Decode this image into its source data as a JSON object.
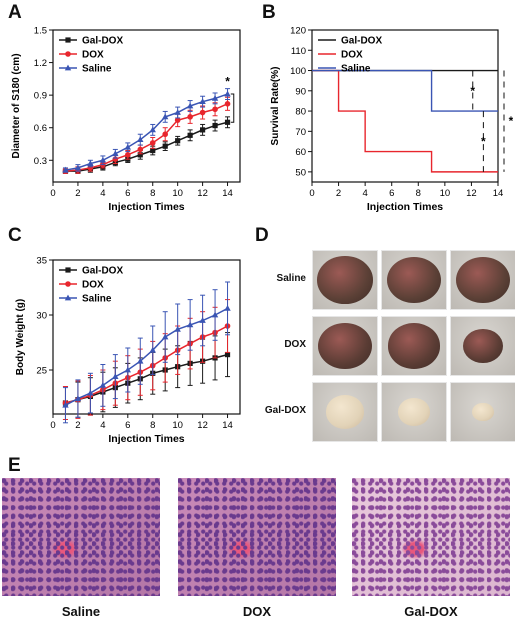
{
  "panels": {
    "a": {
      "letter": "A"
    },
    "b": {
      "letter": "B"
    },
    "c": {
      "letter": "C"
    },
    "d": {
      "letter": "D"
    },
    "e": {
      "letter": "E"
    }
  },
  "colors": {
    "gal_dox": "#1a1a1a",
    "dox": "#e8262d",
    "saline": "#3a55b4"
  },
  "chart_data": [
    {
      "id": "A",
      "type": "line",
      "xlabel": "Injection Times",
      "ylabel": "Diameter of S180 (cm)",
      "xlim": [
        0,
        15
      ],
      "ylim": [
        0.1,
        1.5
      ],
      "xticks": [
        "0",
        "2",
        "4",
        "6",
        "8",
        "10",
        "12",
        "14"
      ],
      "yticks": [
        "0.3",
        "0.6",
        "0.9",
        "1.2",
        "1.5"
      ],
      "legend": "top-left",
      "annotation": "*",
      "x": [
        1,
        2,
        3,
        4,
        5,
        6,
        7,
        8,
        9,
        10,
        11,
        12,
        13,
        14
      ],
      "series": [
        {
          "name": "Gal-DOX",
          "color": "#1a1a1a",
          "marker": "square",
          "values": [
            0.2,
            0.2,
            0.22,
            0.24,
            0.28,
            0.31,
            0.35,
            0.39,
            0.43,
            0.48,
            0.53,
            0.58,
            0.62,
            0.65
          ],
          "errors": [
            0.02,
            0.02,
            0.03,
            0.03,
            0.03,
            0.03,
            0.04,
            0.04,
            0.04,
            0.04,
            0.05,
            0.05,
            0.05,
            0.05
          ]
        },
        {
          "name": "DOX",
          "color": "#e8262d",
          "marker": "circle",
          "values": [
            0.2,
            0.21,
            0.23,
            0.26,
            0.31,
            0.35,
            0.4,
            0.46,
            0.54,
            0.67,
            0.7,
            0.74,
            0.77,
            0.82
          ],
          "errors": [
            0.02,
            0.03,
            0.03,
            0.03,
            0.04,
            0.04,
            0.04,
            0.05,
            0.06,
            0.06,
            0.06,
            0.06,
            0.06,
            0.06
          ]
        },
        {
          "name": "Saline",
          "color": "#3a55b4",
          "marker": "triangle",
          "values": [
            0.21,
            0.23,
            0.27,
            0.3,
            0.36,
            0.42,
            0.49,
            0.58,
            0.7,
            0.74,
            0.8,
            0.84,
            0.87,
            0.91
          ],
          "errors": [
            0.02,
            0.03,
            0.03,
            0.04,
            0.04,
            0.04,
            0.05,
            0.05,
            0.05,
            0.05,
            0.05,
            0.05,
            0.05,
            0.05
          ]
        }
      ]
    },
    {
      "id": "B",
      "type": "line",
      "step": true,
      "xlabel": "Injection Times",
      "ylabel": "Survival Rate(%)",
      "xlim": [
        0,
        14
      ],
      "ylim": [
        45,
        120
      ],
      "xticks": [
        "0",
        "2",
        "4",
        "6",
        "8",
        "10",
        "12",
        "14"
      ],
      "yticks": [
        "50",
        "60",
        "70",
        "80",
        "90",
        "100",
        "110",
        "120"
      ],
      "legend": "top-left",
      "annotations": [
        "*",
        "*",
        "*"
      ],
      "series": [
        {
          "name": "Gal-DOX",
          "color": "#1a1a1a",
          "x": [
            0,
            14
          ],
          "values": [
            100,
            100
          ]
        },
        {
          "name": "DOX",
          "color": "#e8262d",
          "x": [
            0,
            2,
            4,
            9,
            14
          ],
          "values": [
            100,
            80,
            60,
            50,
            50
          ]
        },
        {
          "name": "Saline",
          "color": "#3a55b4",
          "x": [
            0,
            9,
            14
          ],
          "values": [
            100,
            80,
            80
          ]
        }
      ]
    },
    {
      "id": "C",
      "type": "line",
      "xlabel": "Injection Times",
      "ylabel": "Body Weight (g)",
      "xlim": [
        0,
        15
      ],
      "ylim": [
        21,
        35
      ],
      "xticks": [
        "0",
        "2",
        "4",
        "6",
        "8",
        "10",
        "12",
        "14"
      ],
      "yticks": [
        "25",
        "30",
        "35"
      ],
      "legend": "top-left",
      "x": [
        1,
        2,
        3,
        4,
        5,
        6,
        7,
        8,
        9,
        10,
        11,
        12,
        13,
        14
      ],
      "series": [
        {
          "name": "Gal-DOX",
          "color": "#1a1a1a",
          "marker": "square",
          "values": [
            22.0,
            22.3,
            22.6,
            23.0,
            23.4,
            23.8,
            24.2,
            24.7,
            25.0,
            25.3,
            25.6,
            25.8,
            26.1,
            26.4
          ],
          "errors": [
            1.5,
            1.6,
            1.7,
            1.8,
            1.8,
            1.8,
            1.9,
            1.9,
            1.9,
            1.9,
            2.0,
            2.0,
            2.0,
            2.0
          ]
        },
        {
          "name": "DOX",
          "color": "#e8262d",
          "marker": "circle",
          "values": [
            22.0,
            22.3,
            22.7,
            23.2,
            23.8,
            24.3,
            24.8,
            25.4,
            26.1,
            26.8,
            27.4,
            28.0,
            28.4,
            29.0
          ],
          "errors": [
            1.5,
            1.7,
            1.8,
            1.8,
            2.0,
            2.0,
            2.1,
            2.2,
            2.2,
            2.2,
            2.3,
            2.3,
            2.3,
            2.4
          ]
        },
        {
          "name": "Saline",
          "color": "#3a55b4",
          "marker": "triangle",
          "values": [
            21.8,
            22.4,
            22.9,
            23.6,
            24.4,
            25.0,
            25.8,
            26.8,
            28.0,
            28.7,
            29.1,
            29.5,
            30.0,
            30.6
          ],
          "errors": [
            1.6,
            1.7,
            1.8,
            1.9,
            2.0,
            2.0,
            2.1,
            2.2,
            2.3,
            2.3,
            2.3,
            2.3,
            2.3,
            2.4
          ]
        }
      ]
    }
  ],
  "tumor_photos": {
    "rows": [
      {
        "label": "Saline",
        "tone": "#5b4036",
        "sizes": [
          0.86,
          0.84,
          0.84
        ]
      },
      {
        "label": "DOX",
        "tone": "#5a3c34",
        "sizes": [
          0.84,
          0.82,
          0.62
        ]
      },
      {
        "label": "Gal-DOX",
        "tone": "#e2d3b8",
        "sizes": [
          0.6,
          0.5,
          0.34
        ]
      }
    ]
  },
  "histology": {
    "panels": [
      {
        "label": "Saline"
      },
      {
        "label": "DOX"
      },
      {
        "label": "Gal-DOX"
      }
    ]
  }
}
